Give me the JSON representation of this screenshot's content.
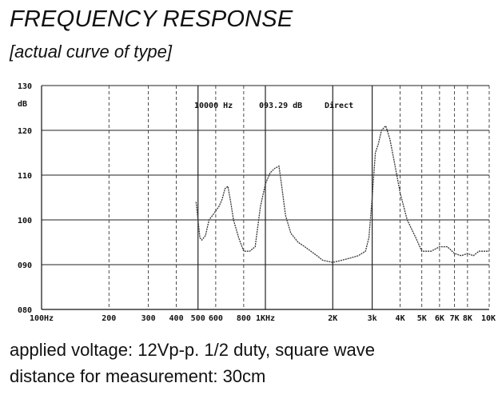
{
  "header": {
    "title": "FREQUENCY RESPONSE",
    "subtitle": "[actual curve of type]"
  },
  "notes": {
    "line1": "applied voltage: 12Vp-p. 1/2 duty, square wave",
    "line2": "distance for measurement: 30cm"
  },
  "chart_data": {
    "type": "line",
    "ylabel": "dB",
    "ylim": [
      80,
      130
    ],
    "y_ticks": [
      {
        "value": 130,
        "label": "130"
      },
      {
        "value": 120,
        "label": "120"
      },
      {
        "value": 110,
        "label": "110"
      },
      {
        "value": 100,
        "label": "100"
      },
      {
        "value": 90,
        "label": "090"
      },
      {
        "value": 80,
        "label": "080"
      }
    ],
    "xlim": [
      100,
      10000
    ],
    "x_scale": "log",
    "x_ticks": [
      {
        "value": 100,
        "label": "100Hz"
      },
      {
        "value": 200,
        "label": "200"
      },
      {
        "value": 300,
        "label": "300"
      },
      {
        "value": 400,
        "label": "400"
      },
      {
        "value": 500,
        "label": "500"
      },
      {
        "value": 600,
        "label": "600"
      },
      {
        "value": 800,
        "label": "800"
      },
      {
        "value": 1000,
        "label": "1KHz"
      },
      {
        "value": 2000,
        "label": "2K"
      },
      {
        "value": 3000,
        "label": "3k"
      },
      {
        "value": 4000,
        "label": "4K"
      },
      {
        "value": 5000,
        "label": "5K"
      },
      {
        "value": 6000,
        "label": "6K"
      },
      {
        "value": 7000,
        "label": "7K"
      },
      {
        "value": 8000,
        "label": "8K"
      },
      {
        "value": 10000,
        "label": "10K"
      }
    ],
    "readout": {
      "freq": "10000 Hz",
      "level": "093.29 dB",
      "mode": "Direct"
    },
    "grid": true,
    "series": [
      {
        "color": "#333333",
        "points": [
          [
            490,
            104
          ],
          [
            500,
            100
          ],
          [
            510,
            96
          ],
          [
            520,
            95.5
          ],
          [
            540,
            96.5
          ],
          [
            560,
            100
          ],
          [
            580,
            101
          ],
          [
            600,
            102
          ],
          [
            620,
            103
          ],
          [
            640,
            104.5
          ],
          [
            660,
            107
          ],
          [
            680,
            107.5
          ],
          [
            700,
            104
          ],
          [
            720,
            100
          ],
          [
            760,
            96
          ],
          [
            800,
            93
          ],
          [
            850,
            93
          ],
          [
            900,
            94
          ],
          [
            950,
            103
          ],
          [
            1000,
            108
          ],
          [
            1050,
            110.5
          ],
          [
            1100,
            111.5
          ],
          [
            1150,
            112
          ],
          [
            1180,
            108
          ],
          [
            1230,
            101
          ],
          [
            1300,
            97
          ],
          [
            1400,
            95
          ],
          [
            1500,
            94
          ],
          [
            1700,
            92
          ],
          [
            1800,
            91
          ],
          [
            2000,
            90.5
          ],
          [
            2200,
            91
          ],
          [
            2400,
            91.5
          ],
          [
            2600,
            92
          ],
          [
            2800,
            93
          ],
          [
            2900,
            96
          ],
          [
            3000,
            105
          ],
          [
            3100,
            115
          ],
          [
            3200,
            117
          ],
          [
            3300,
            120
          ],
          [
            3450,
            121
          ],
          [
            3600,
            118
          ],
          [
            3800,
            112
          ],
          [
            4000,
            106
          ],
          [
            4300,
            100
          ],
          [
            4700,
            96
          ],
          [
            5000,
            93
          ],
          [
            5500,
            93
          ],
          [
            6000,
            94
          ],
          [
            6500,
            94
          ],
          [
            7000,
            92.5
          ],
          [
            7500,
            92
          ],
          [
            8000,
            92.5
          ],
          [
            8500,
            92
          ],
          [
            9000,
            93
          ],
          [
            10000,
            93
          ]
        ]
      }
    ]
  }
}
